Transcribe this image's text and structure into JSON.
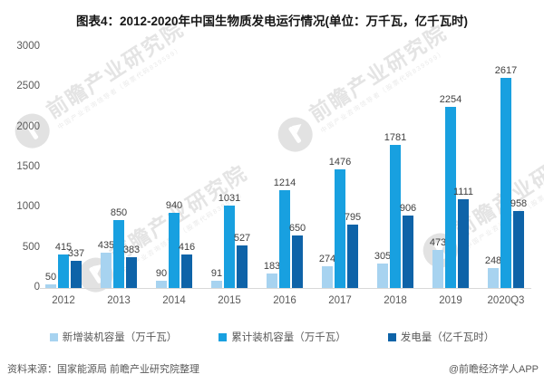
{
  "title": "图表4：2012-2020年中国生物质发电运行情况(单位：万千瓦，亿千瓦时)",
  "watermark": {
    "logo_text": "前瞻产业研究院",
    "logo_subtext": "中国产业咨询领导者（股票代码839599）"
  },
  "colors": {
    "new_capacity": "#a7d3f0",
    "cumulative_capacity": "#18a0e0",
    "generation": "#0e63a8",
    "axis_text": "#595959",
    "label_text": "#3f3f3f",
    "axis_line": "#d8d8d8",
    "watermark": "#e4e4e4"
  },
  "chart_data": {
    "type": "bar",
    "title": "图表4：2012-2020年中国生物质发电运行情况(单位：万千瓦，亿千瓦时)",
    "categories": [
      "2012",
      "2013",
      "2014",
      "2015",
      "2016",
      "2017",
      "2018",
      "2019",
      "2020Q3"
    ],
    "series": [
      {
        "name": "新增装机容量（万千瓦）",
        "color": "#a7d3f0",
        "values": [
          50,
          435,
          90,
          91,
          183,
          274,
          305,
          473,
          248
        ]
      },
      {
        "name": "累计装机容量（万千瓦）",
        "color": "#18a0e0",
        "values": [
          415,
          850,
          940,
          1031,
          1214,
          1476,
          1781,
          2254,
          2617
        ]
      },
      {
        "name": "发电量（亿千瓦时）",
        "color": "#0e63a8",
        "values": [
          337,
          383,
          416,
          527,
          650,
          795,
          906,
          1111,
          958
        ]
      }
    ],
    "xlabel": "",
    "ylabel": "",
    "ylim": [
      0,
      3000
    ],
    "yticks": [
      0,
      500,
      1000,
      1500,
      2000,
      2500,
      3000
    ],
    "grid": false,
    "legend_position": "bottom",
    "data_labels": true
  },
  "footer": {
    "source": "资料来源：国家能源局 前瞻产业研究院整理",
    "credit": "@前瞻经济学人APP"
  }
}
